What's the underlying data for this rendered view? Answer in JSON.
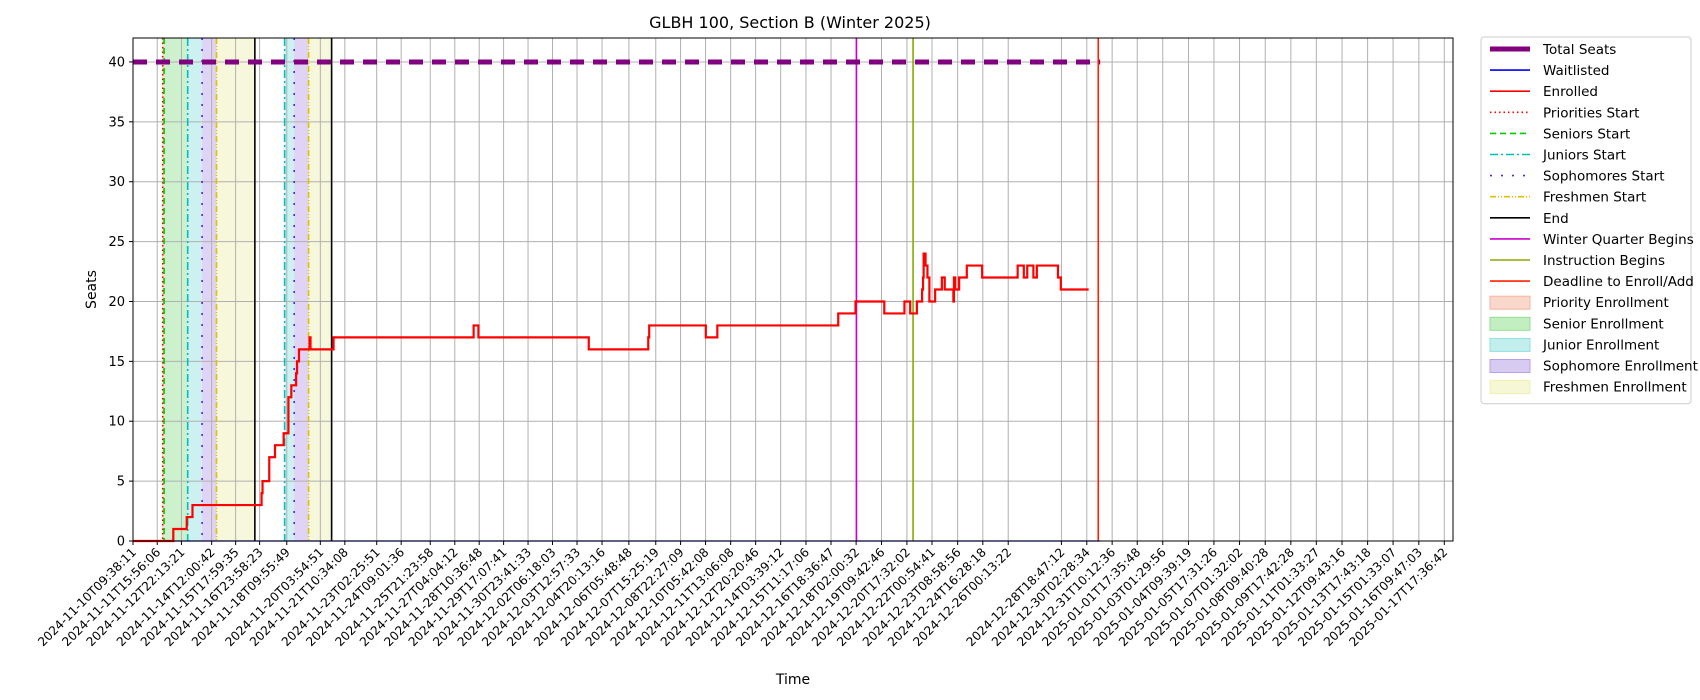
{
  "chart_data": {
    "type": "line",
    "title": "GLBH 100, Section B (Winter 2025)",
    "xlabel": "Time",
    "ylabel": "Seats",
    "ylim": [
      0,
      42
    ],
    "yticks": [
      0,
      5,
      10,
      15,
      20,
      25,
      30,
      35,
      40
    ],
    "x_start": "2024-11-10T09:38:11",
    "x_end": "2025-01-18T04:30:00",
    "x_ticks": [
      "2024-11-10T09:38:11",
      "2024-11-11T15:56:06",
      "2024-11-12T22:13:21",
      "2024-11-14T12:00:42",
      "2024-11-15T17:59:35",
      "2024-11-16T23:58:23",
      "2024-11-18T09:55:49",
      "2024-11-20T03:54:51",
      "2024-11-21T10:34:08",
      "2024-11-23T02:25:51",
      "2024-11-24T09:01:36",
      "2024-11-25T21:23:58",
      "2024-11-27T04:04:12",
      "2024-11-28T10:36:48",
      "2024-11-29T17:07:41",
      "2024-11-30T23:41:33",
      "2024-12-02T06:18:03",
      "2024-12-03T12:57:33",
      "2024-12-04T20:13:16",
      "2024-12-06T05:48:48",
      "2024-12-07T15:25:19",
      "2024-12-08T22:27:09",
      "2024-12-10T05:42:08",
      "2024-12-11T13:06:08",
      "2024-12-12T20:20:46",
      "2024-12-14T03:39:12",
      "2024-12-15T11:17:06",
      "2024-12-16T18:36:47",
      "2024-12-18T02:00:32",
      "2024-12-19T09:42:46",
      "2024-12-20T17:32:02",
      "2024-12-22T00:54:41",
      "2024-12-23T08:58:56",
      "2024-12-24T16:28:18",
      "2024-12-26T00:13:22",
      "2024-12-28T18:47:12",
      "2024-12-30T02:28:34",
      "2024-12-31T10:12:36",
      "2025-01-01T17:35:48",
      "2025-01-03T01:29:56",
      "2025-01-04T09:39:19",
      "2025-01-05T17:31:26",
      "2025-01-07T01:32:02",
      "2025-01-08T09:40:28",
      "2025-01-09T17:42:28",
      "2025-01-11T01:33:27",
      "2025-01-12T09:43:16",
      "2025-01-13T17:43:18",
      "2025-01-15T01:33:07",
      "2025-01-16T09:47:03",
      "2025-01-17T17:36:42"
    ],
    "total_seats": 40,
    "series": [
      {
        "name": "Total Seats",
        "color": "#800080",
        "style": "dashed-thick",
        "values": [
          [
            0,
            40
          ],
          [
            50.4,
            40
          ]
        ]
      },
      {
        "name": "Waitlisted",
        "color": "#0000ff",
        "style": "solid",
        "values": [
          [
            0,
            0
          ],
          [
            50.4,
            0
          ]
        ]
      },
      {
        "name": "Enrolled",
        "color": "#ff0000",
        "style": "step",
        "values": [
          [
            0,
            0
          ],
          [
            1.7,
            0
          ],
          [
            2.1,
            1
          ],
          [
            2.8,
            2
          ],
          [
            3.1,
            3
          ],
          [
            6.6,
            3
          ],
          [
            6.7,
            4
          ],
          [
            6.75,
            5
          ],
          [
            7.1,
            7
          ],
          [
            7.4,
            8
          ],
          [
            7.85,
            9
          ],
          [
            8.1,
            12
          ],
          [
            8.25,
            13
          ],
          [
            8.5,
            14
          ],
          [
            8.55,
            15
          ],
          [
            8.65,
            16
          ],
          [
            9.2,
            17
          ],
          [
            9.25,
            16
          ],
          [
            10.4,
            16
          ],
          [
            10.45,
            17
          ],
          [
            17.7,
            17
          ],
          [
            17.75,
            18
          ],
          [
            18.0,
            17
          ],
          [
            23.7,
            17
          ],
          [
            23.75,
            16
          ],
          [
            26.8,
            16
          ],
          [
            26.85,
            17
          ],
          [
            26.9,
            18
          ],
          [
            29.8,
            18
          ],
          [
            29.85,
            17
          ],
          [
            30.4,
            17
          ],
          [
            30.45,
            18
          ],
          [
            36.7,
            18
          ],
          [
            36.75,
            19
          ],
          [
            37.6,
            19
          ],
          [
            37.65,
            20
          ],
          [
            39.1,
            20
          ],
          [
            39.15,
            19
          ],
          [
            40.15,
            19
          ],
          [
            40.2,
            20
          ],
          [
            40.5,
            19
          ],
          [
            40.8,
            19
          ],
          [
            40.85,
            20
          ],
          [
            41.1,
            20
          ],
          [
            41.12,
            21
          ],
          [
            41.17,
            22
          ],
          [
            41.2,
            24
          ],
          [
            41.3,
            23
          ],
          [
            41.4,
            22
          ],
          [
            41.5,
            20
          ],
          [
            41.75,
            20
          ],
          [
            41.8,
            21
          ],
          [
            42.1,
            21
          ],
          [
            42.15,
            22
          ],
          [
            42.3,
            21
          ],
          [
            42.7,
            21
          ],
          [
            42.75,
            20
          ],
          [
            42.78,
            22
          ],
          [
            42.85,
            21
          ],
          [
            43.0,
            21
          ],
          [
            43.05,
            22
          ],
          [
            43.4,
            22
          ],
          [
            43.45,
            23
          ],
          [
            44.2,
            23
          ],
          [
            44.25,
            22
          ],
          [
            46.05,
            22
          ],
          [
            46.1,
            23
          ],
          [
            46.4,
            23
          ],
          [
            46.42,
            22
          ],
          [
            46.55,
            22
          ],
          [
            46.6,
            23
          ],
          [
            46.9,
            23
          ],
          [
            46.92,
            22
          ],
          [
            47.05,
            22
          ],
          [
            47.1,
            23
          ],
          [
            48.15,
            23
          ],
          [
            48.2,
            22
          ],
          [
            48.3,
            22
          ],
          [
            48.35,
            21
          ],
          [
            49.8,
            21
          ]
        ]
      }
    ],
    "event_lines": [
      {
        "name": "Priorities Start",
        "color": "#ff0000",
        "style": "dotted",
        "x": [
          1.55
        ]
      },
      {
        "name": "Seniors Start",
        "color": "#00cc00",
        "style": "dashed",
        "x": [
          1.62
        ]
      },
      {
        "name": "Juniors Start",
        "color": "#00bfbf",
        "style": "dashdot",
        "x": [
          2.85,
          7.9
        ]
      },
      {
        "name": "Sophomores Start",
        "color": "#5522dd",
        "style": "loosedot",
        "x": [
          3.6,
          8.4
        ]
      },
      {
        "name": "Freshmen Start",
        "color": "#e0c000",
        "style": "dashdotdot",
        "x": [
          4.35,
          9.15
        ]
      },
      {
        "name": "End",
        "color": "#000000",
        "style": "solid",
        "x": [
          6.35,
          10.35
        ]
      },
      {
        "name": "Winter Quarter Begins",
        "color": "#cc00cc",
        "style": "solid",
        "x": [
          37.7
        ]
      },
      {
        "name": "Instruction Begins",
        "color": "#88aa00",
        "style": "solid",
        "x": [
          40.65
        ]
      },
      {
        "name": "Deadline to Enroll/Add",
        "color": "#ff2200",
        "style": "solid",
        "x": [
          50.3
        ]
      }
    ],
    "spans": [
      {
        "name": "Priority Enrollment",
        "color": "#f4b6a0",
        "ranges": [
          [
            1.5,
            1.6
          ]
        ]
      },
      {
        "name": "Senior Enrollment",
        "color": "#90e090",
        "ranges": [
          [
            1.6,
            2.85
          ]
        ]
      },
      {
        "name": "Junior Enrollment",
        "color": "#90e0e0",
        "ranges": [
          [
            2.85,
            3.6
          ],
          [
            7.9,
            8.4
          ]
        ]
      },
      {
        "name": "Sophomore Enrollment",
        "color": "#b8a0e8",
        "ranges": [
          [
            3.6,
            4.35
          ],
          [
            8.4,
            9.15
          ]
        ]
      },
      {
        "name": "Freshmen Enrollment",
        "color": "#eef0b0",
        "ranges": [
          [
            4.35,
            6.35
          ],
          [
            9.15,
            10.35
          ]
        ]
      }
    ],
    "legend_position": "outside-right",
    "legend": [
      {
        "label": "Total Seats",
        "kind": "line",
        "color": "#800080",
        "style": "thick"
      },
      {
        "label": "Waitlisted",
        "kind": "line",
        "color": "#0000ff",
        "style": "solid"
      },
      {
        "label": "Enrolled",
        "kind": "line",
        "color": "#ff0000",
        "style": "solid"
      },
      {
        "label": "Priorities Start",
        "kind": "line",
        "color": "#ff0000",
        "style": "dotted"
      },
      {
        "label": "Seniors Start",
        "kind": "line",
        "color": "#00cc00",
        "style": "dashed"
      },
      {
        "label": "Juniors Start",
        "kind": "line",
        "color": "#00bfbf",
        "style": "dashdot"
      },
      {
        "label": "Sophomores Start",
        "kind": "line",
        "color": "#5522dd",
        "style": "loosedot"
      },
      {
        "label": "Freshmen Start",
        "kind": "line",
        "color": "#e0c000",
        "style": "dashdotdot"
      },
      {
        "label": "End",
        "kind": "line",
        "color": "#000000",
        "style": "solid"
      },
      {
        "label": "Winter Quarter Begins",
        "kind": "line",
        "color": "#cc00cc",
        "style": "solid"
      },
      {
        "label": "Instruction Begins",
        "kind": "line",
        "color": "#88aa00",
        "style": "solid"
      },
      {
        "label": "Deadline to Enroll/Add",
        "kind": "line",
        "color": "#ff2200",
        "style": "solid"
      },
      {
        "label": "Priority Enrollment",
        "kind": "patch",
        "color": "#f4b6a0"
      },
      {
        "label": "Senior Enrollment",
        "kind": "patch",
        "color": "#90e090"
      },
      {
        "label": "Junior Enrollment",
        "kind": "patch",
        "color": "#90e0e0"
      },
      {
        "label": "Sophomore Enrollment",
        "kind": "patch",
        "color": "#b8a0e8"
      },
      {
        "label": "Freshmen Enrollment",
        "kind": "patch",
        "color": "#eef0b0"
      }
    ]
  }
}
